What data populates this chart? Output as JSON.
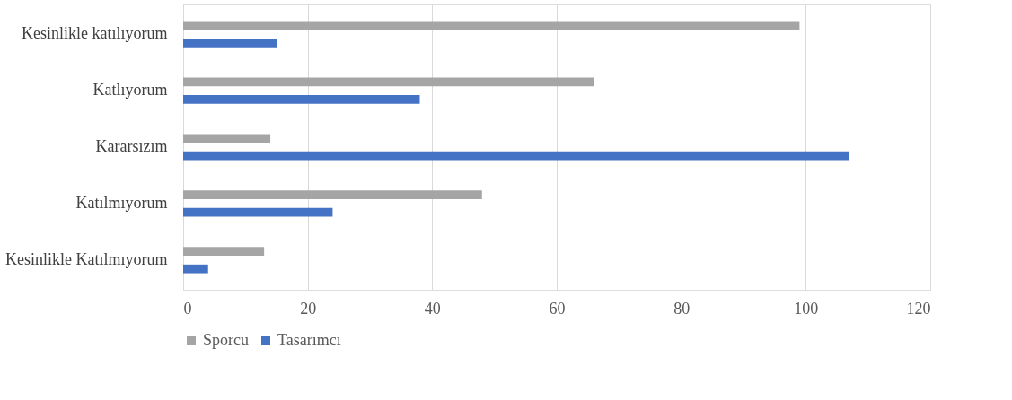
{
  "chart_data": {
    "type": "bar",
    "orientation": "horizontal",
    "categories": [
      "Kesinlikle katılıyorum",
      "Katlıyorum",
      "Kararsızım",
      "Katılmıyorum",
      "Kesinlikle Katılmıyorum"
    ],
    "series": [
      {
        "name": "Sporcu",
        "color": "#a5a5a5",
        "values": [
          99,
          66,
          14,
          48,
          13
        ]
      },
      {
        "name": "Tasarımcı",
        "color": "#4472c4",
        "values": [
          15,
          38,
          107,
          24,
          4
        ]
      }
    ],
    "xlim": [
      0,
      120
    ],
    "xticks": [
      0,
      20,
      40,
      60,
      80,
      100,
      120
    ],
    "grid": "x",
    "legend": "bottom"
  }
}
